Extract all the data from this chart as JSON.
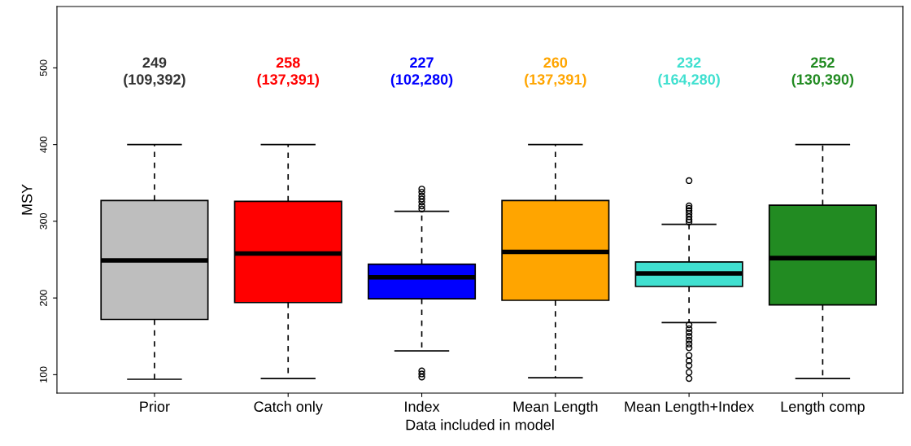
{
  "chart_data": {
    "type": "box",
    "xlabel": "Data included in model",
    "ylabel": "MSY",
    "categories": [
      "Prior",
      "Catch only",
      "Index",
      "Mean Length",
      "Mean Length+Index",
      "Length comp"
    ],
    "colors": [
      "#bebebe",
      "#ff0000",
      "#0000ff",
      "#ffa500",
      "#40e0d0",
      "#228b22"
    ],
    "boxes": [
      {
        "low": 94,
        "q1": 172,
        "median": 249,
        "q3": 327,
        "high": 400
      },
      {
        "low": 95,
        "q1": 194,
        "median": 258,
        "q3": 326,
        "high": 400
      },
      {
        "low": 131,
        "q1": 199,
        "median": 227,
        "q3": 244,
        "high": 313,
        "outliers": [
          342,
          338,
          333,
          329,
          325,
          320,
          316,
          105,
          101,
          97
        ]
      },
      {
        "low": 96,
        "q1": 197,
        "median": 260,
        "q3": 327,
        "high": 400
      },
      {
        "low": 168,
        "q1": 215,
        "median": 232,
        "q3": 247,
        "high": 296,
        "outliers": [
          353,
          320,
          317,
          314,
          310,
          306,
          302,
          299,
          165,
          160,
          155,
          150,
          145,
          140,
          135,
          125,
          118,
          112,
          103,
          95
        ]
      },
      {
        "low": 95,
        "q1": 191,
        "median": 252,
        "q3": 321,
        "high": 400
      }
    ],
    "annotations": [
      "249\n(109,392)",
      "258\n(137,391)",
      "227\n(102,280)",
      "260\n(137,391)",
      "232\n(164,280)",
      "252\n(130,390)"
    ],
    "ylim": [
      76,
      580
    ],
    "yticks": [
      100,
      200,
      300,
      400,
      500
    ],
    "grid": false,
    "legend": false
  }
}
